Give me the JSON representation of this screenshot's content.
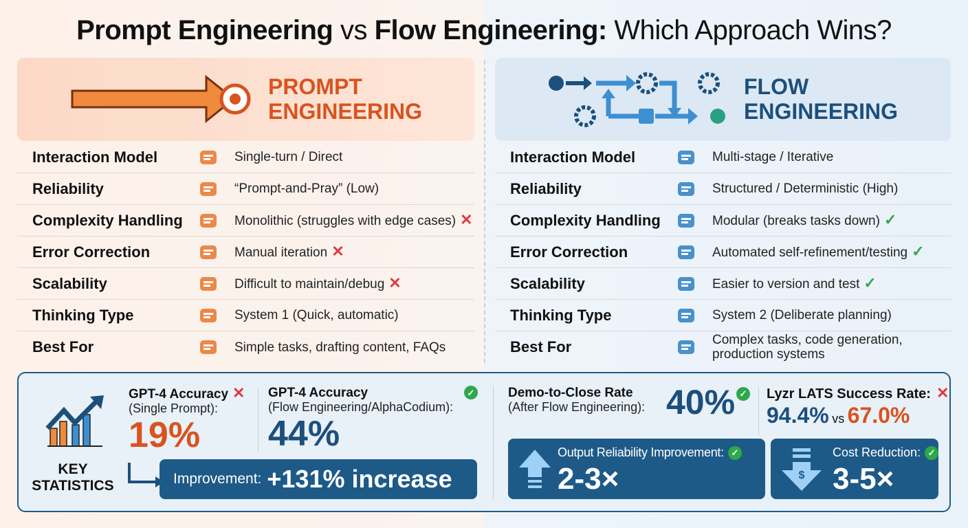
{
  "title": {
    "part1": "Prompt Engineering",
    "vs": " vs ",
    "part2": "Flow Engineering:",
    "part3": " Which Approach Wins?"
  },
  "left": {
    "heading_line1": "PROMPT",
    "heading_line2": "ENGINEERING",
    "accent": "#d9531e",
    "rows": [
      {
        "label": "Interaction Model",
        "icon": "chat-bubbles-icon",
        "value": "Single-turn / Direct",
        "mark": ""
      },
      {
        "label": "Reliability",
        "icon": "warning-icon",
        "value": "“Prompt-and-Pray” (Low)",
        "mark": ""
      },
      {
        "label": "Complexity Handling",
        "icon": "box-icon",
        "value": "Monolithic (struggles with edge cases)",
        "mark": "✕"
      },
      {
        "label": "Error Correction",
        "icon": "wrench-hand-icon",
        "value": "Manual iteration",
        "mark": "✕"
      },
      {
        "label": "Scalability",
        "icon": "broken-chain-icon",
        "value": "Difficult to maintain/debug",
        "mark": "✕"
      },
      {
        "label": "Thinking Type",
        "icon": "brain-lightning-icon",
        "value": "System 1 (Quick, automatic)",
        "mark": ""
      },
      {
        "label": "Best For",
        "icon": "list-icon",
        "value": "Simple tasks, drafting content, FAQs",
        "mark": ""
      }
    ]
  },
  "right": {
    "heading_line1": "FLOW",
    "heading_line2": "ENGINEERING",
    "accent": "#1c4f7c",
    "rows": [
      {
        "label": "Interaction Model",
        "icon": "chat-cycle-icon",
        "value": "Multi-stage / Iterative",
        "mark": ""
      },
      {
        "label": "Reliability",
        "icon": "shield-check-icon",
        "value": "Structured / Deterministic (High)",
        "mark": ""
      },
      {
        "label": "Complexity Handling",
        "icon": "modules-icon",
        "value": "Modular (breaks tasks down)",
        "mark": "✓"
      },
      {
        "label": "Error Correction",
        "icon": "robot-arm-magnifier-icon",
        "value": "Automated self-refinement/testing",
        "mark": "✓"
      },
      {
        "label": "Scalability",
        "icon": "database-tag-icon",
        "value": "Easier to version and test",
        "mark": "✓"
      },
      {
        "label": "Thinking Type",
        "icon": "brain-network-icon",
        "value": "System 2 (Deliberate planning)",
        "mark": ""
      },
      {
        "label": "Best For",
        "icon": "list-icon",
        "value": "Complex tasks, code generation, production systems",
        "mark": ""
      }
    ]
  },
  "stats": {
    "label_line1": "KEY",
    "label_line2": "STATISTICS",
    "gpt_single": {
      "title": "GPT-4 Accuracy",
      "sub": "(Single Prompt):",
      "value": "19%",
      "mark": "✕"
    },
    "gpt_flow": {
      "title": "GPT-4 Accuracy",
      "sub": "(Flow Engineering/AlphaCodium):",
      "value": "44%",
      "mark": "✓"
    },
    "improvement": {
      "label": "Improvement:",
      "value": "+131% increase"
    },
    "demo": {
      "title": "Demo-to-Close Rate",
      "sub": "(After Flow Engineering):",
      "value": "40%",
      "mark": "✓"
    },
    "lyzr": {
      "title": "Lyzr LATS Success Rate:",
      "value1": "94.4%",
      "vs": "vs",
      "value2": "67.0%",
      "mark": "✕"
    },
    "reliability": {
      "label": "Output Reliability Improvement:",
      "value": "2-3×",
      "mark": "✓"
    },
    "cost": {
      "label": "Cost Reduction:",
      "value": "3-5×",
      "mark": "✓"
    }
  },
  "colors": {
    "orange": "#d9531e",
    "blue": "#1c4f7c",
    "red_x": "#e0393e",
    "green_check": "#2ea84a",
    "box": "#1d5a88"
  }
}
